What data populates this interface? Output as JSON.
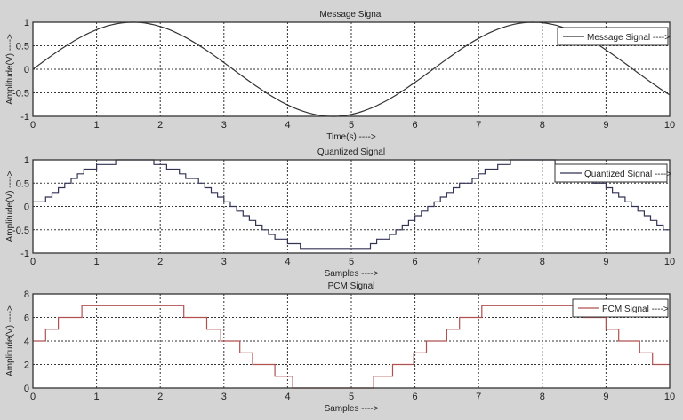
{
  "chart_data": [
    {
      "type": "line",
      "title": "Message Signal",
      "xlabel": "Time(s) ---->",
      "ylabel": "Amplitude(V) ---->",
      "xlim": [
        0,
        10
      ],
      "ylim": [
        -1,
        1
      ],
      "xticks": [
        0,
        1,
        2,
        3,
        4,
        5,
        6,
        7,
        8,
        9,
        10
      ],
      "yticks": [
        -1,
        -0.5,
        0,
        0.5,
        1
      ],
      "ytick_labels": [
        "-1",
        "-0.5",
        "0",
        "0.5",
        "1"
      ],
      "grid": true,
      "legend": {
        "label": "Message Signal ---->",
        "position": "upper right"
      },
      "color": "#333333",
      "series": [
        {
          "name": "Message Signal",
          "function": "sin(t)",
          "x_step": 0.05
        }
      ]
    },
    {
      "type": "line",
      "title": "Quantized Signal",
      "xlabel": "Samples ---->",
      "ylabel": "Amplitude(V) ---->",
      "xlim": [
        0,
        10
      ],
      "ylim": [
        -1,
        1
      ],
      "xticks": [
        0,
        1,
        2,
        3,
        4,
        5,
        6,
        7,
        8,
        9,
        10
      ],
      "yticks": [
        -1,
        -0.5,
        0,
        0.5,
        1
      ],
      "ytick_labels": [
        "-1",
        "-0.5",
        "0",
        "0.5",
        "1"
      ],
      "grid": true,
      "legend": {
        "label": "Quantized Signal ---->",
        "position": "upper right"
      },
      "color": "#333355",
      "series": [
        {
          "name": "Quantized Signal",
          "style": "stairs",
          "sample_step": 0.1,
          "quant_step": 0.1
        }
      ]
    },
    {
      "type": "line",
      "title": "PCM Signal",
      "xlabel": "Samples ---->",
      "ylabel": "Amplitude(V) ---->",
      "xlim": [
        0,
        10
      ],
      "ylim": [
        0,
        8
      ],
      "xticks": [
        0,
        1,
        2,
        3,
        4,
        5,
        6,
        7,
        8,
        9,
        10
      ],
      "yticks": [
        0,
        2,
        4,
        6,
        8
      ],
      "ytick_labels": [
        "0",
        "2",
        "4",
        "6",
        "8"
      ],
      "grid": true,
      "legend": {
        "label": "PCM Signal ---->",
        "position": "upper right"
      },
      "color": "#b05050",
      "series": [
        {
          "name": "PCM Signal",
          "style": "stairs",
          "edges": [
            0,
            0.2,
            0.4,
            0.77,
            2.37,
            2.73,
            2.95,
            3.25,
            3.45,
            3.8,
            4.08,
            5.35,
            5.65,
            5.98,
            6.18,
            6.5,
            6.7,
            7.05,
            8.65,
            9.0,
            9.2,
            9.53,
            9.73,
            10
          ],
          "values": [
            4,
            5,
            6,
            7,
            6,
            5,
            4,
            3,
            2,
            1,
            0,
            1,
            2,
            3,
            4,
            5,
            6,
            7,
            6,
            5,
            4,
            3,
            2
          ]
        }
      ]
    }
  ]
}
